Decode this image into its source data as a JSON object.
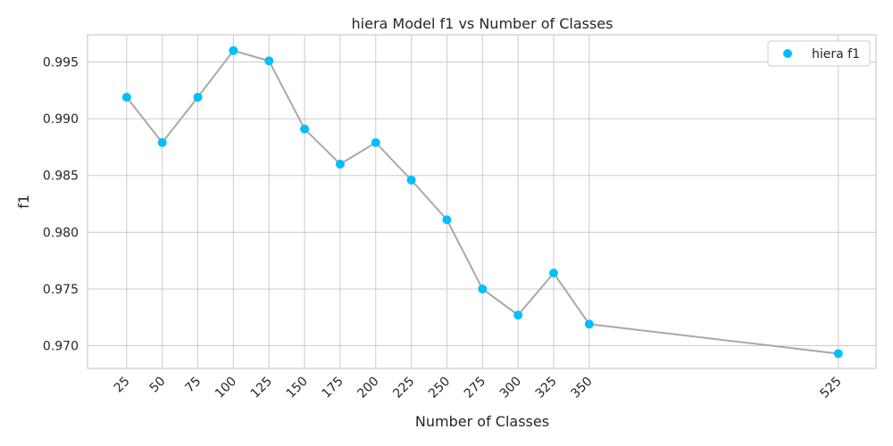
{
  "chart_data": {
    "type": "line",
    "title": "hiera Model f1 vs Number of Classes",
    "xlabel": "Number of Classes",
    "ylabel": "f1",
    "x": [
      25,
      50,
      75,
      100,
      125,
      150,
      175,
      200,
      225,
      250,
      275,
      300,
      325,
      350,
      525
    ],
    "x_tick_labels": [
      "25",
      "50",
      "75",
      "100",
      "125",
      "150",
      "175",
      "200",
      "225",
      "250",
      "275",
      "300",
      "325",
      "350",
      "525"
    ],
    "series": [
      {
        "name": "hiera f1",
        "values": [
          0.9919,
          0.9879,
          0.9919,
          0.996,
          0.9951,
          0.9891,
          0.986,
          0.9879,
          0.9846,
          0.9811,
          0.975,
          0.9727,
          0.9764,
          0.9719,
          0.9693
        ]
      }
    ],
    "y_ticks": [
      0.97,
      0.975,
      0.98,
      0.985,
      0.99,
      0.995
    ],
    "y_tick_labels": [
      "0.970",
      "0.975",
      "0.980",
      "0.985",
      "0.990",
      "0.995"
    ],
    "xlim": [
      -2.5,
      551.5
    ],
    "ylim": [
      0.968,
      0.9974
    ],
    "grid": true,
    "legend_position": "top-right",
    "colors": {
      "points": "#00bfff",
      "line": "#a9a9a9",
      "grid": "#cccccc"
    }
  }
}
